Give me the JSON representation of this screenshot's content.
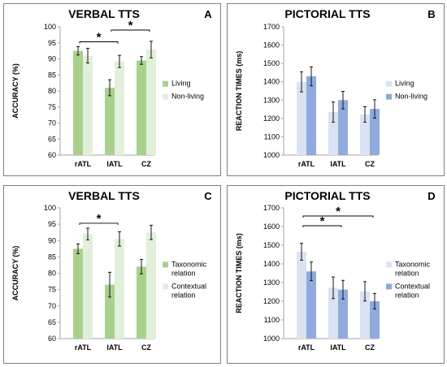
{
  "chart_data": [
    {
      "type": "bar",
      "letter": "A",
      "title": "VERBAL TTS",
      "ylabel": "ACCURACY (%)",
      "ylim": [
        60,
        100
      ],
      "yticks": [
        60,
        65,
        70,
        75,
        80,
        85,
        90,
        95,
        100
      ],
      "categories": [
        "rATL",
        "lATL",
        "CZ"
      ],
      "colors": [
        "#a9d18e",
        "#e2efda"
      ],
      "series": [
        {
          "name": "Living",
          "values": [
            92.5,
            81.0,
            89.5
          ],
          "errors": [
            1.3,
            2.5,
            1.2
          ]
        },
        {
          "name": "Non-living",
          "values": [
            91.0,
            89.2,
            92.9
          ],
          "errors": [
            2.3,
            1.9,
            2.6
          ]
        }
      ],
      "significance": [
        {
          "from": 0,
          "to": 1,
          "label": "*"
        },
        {
          "from": 1,
          "to": 2,
          "label": "*"
        }
      ]
    },
    {
      "type": "bar",
      "letter": "B",
      "title": "PICTORIAL TTS",
      "ylabel": "REACTION TIMES (ms)",
      "ylim": [
        1000,
        1700
      ],
      "yticks": [
        1000,
        1100,
        1200,
        1300,
        1400,
        1500,
        1600,
        1700
      ],
      "categories": [
        "rATL",
        "lATL",
        "CZ"
      ],
      "colors": [
        "#dae3f3",
        "#8faadc"
      ],
      "series": [
        {
          "name": "Living",
          "values": [
            1400,
            1235,
            1222
          ],
          "errors": [
            55,
            55,
            42
          ]
        },
        {
          "name": "Non-living",
          "values": [
            1430,
            1300,
            1252
          ],
          "errors": [
            52,
            48,
            50
          ]
        }
      ],
      "significance": []
    },
    {
      "type": "bar",
      "letter": "C",
      "title": "VERBAL TTS",
      "ylabel": "ACCURACY (%)",
      "ylim": [
        60,
        100
      ],
      "yticks": [
        60,
        65,
        70,
        75,
        80,
        85,
        90,
        95,
        100
      ],
      "categories": [
        "rATL",
        "lATL",
        "CZ"
      ],
      "colors": [
        "#a9d18e",
        "#e2efda"
      ],
      "series": [
        {
          "name": "Taxonomic relation",
          "values": [
            87.5,
            76.5,
            82.0
          ],
          "errors": [
            1.5,
            3.8,
            2.2
          ]
        },
        {
          "name": "Contextual relation",
          "values": [
            92.0,
            90.5,
            92.5
          ],
          "errors": [
            1.8,
            2.2,
            2.2
          ]
        }
      ],
      "significance": [
        {
          "from": 0,
          "to": 1,
          "label": "*"
        }
      ]
    },
    {
      "type": "bar",
      "letter": "D",
      "title": "PICTORIAL TTS",
      "ylabel": "REACTION TIMES (ms)",
      "ylim": [
        1000,
        1700
      ],
      "yticks": [
        1000,
        1100,
        1200,
        1300,
        1400,
        1500,
        1600,
        1700
      ],
      "categories": [
        "rATL",
        "lATL",
        "CZ"
      ],
      "colors": [
        "#dae3f3",
        "#8faadc"
      ],
      "series": [
        {
          "name": "Taxonomic relation",
          "values": [
            1465,
            1272,
            1253
          ],
          "errors": [
            45,
            58,
            52
          ]
        },
        {
          "name": "Contextual relation",
          "values": [
            1360,
            1262,
            1200
          ],
          "errors": [
            50,
            50,
            42
          ]
        }
      ],
      "significance": [
        {
          "from": 0,
          "to": 1,
          "label": "*"
        },
        {
          "from": 0,
          "to": 2,
          "label": "*"
        }
      ]
    }
  ]
}
